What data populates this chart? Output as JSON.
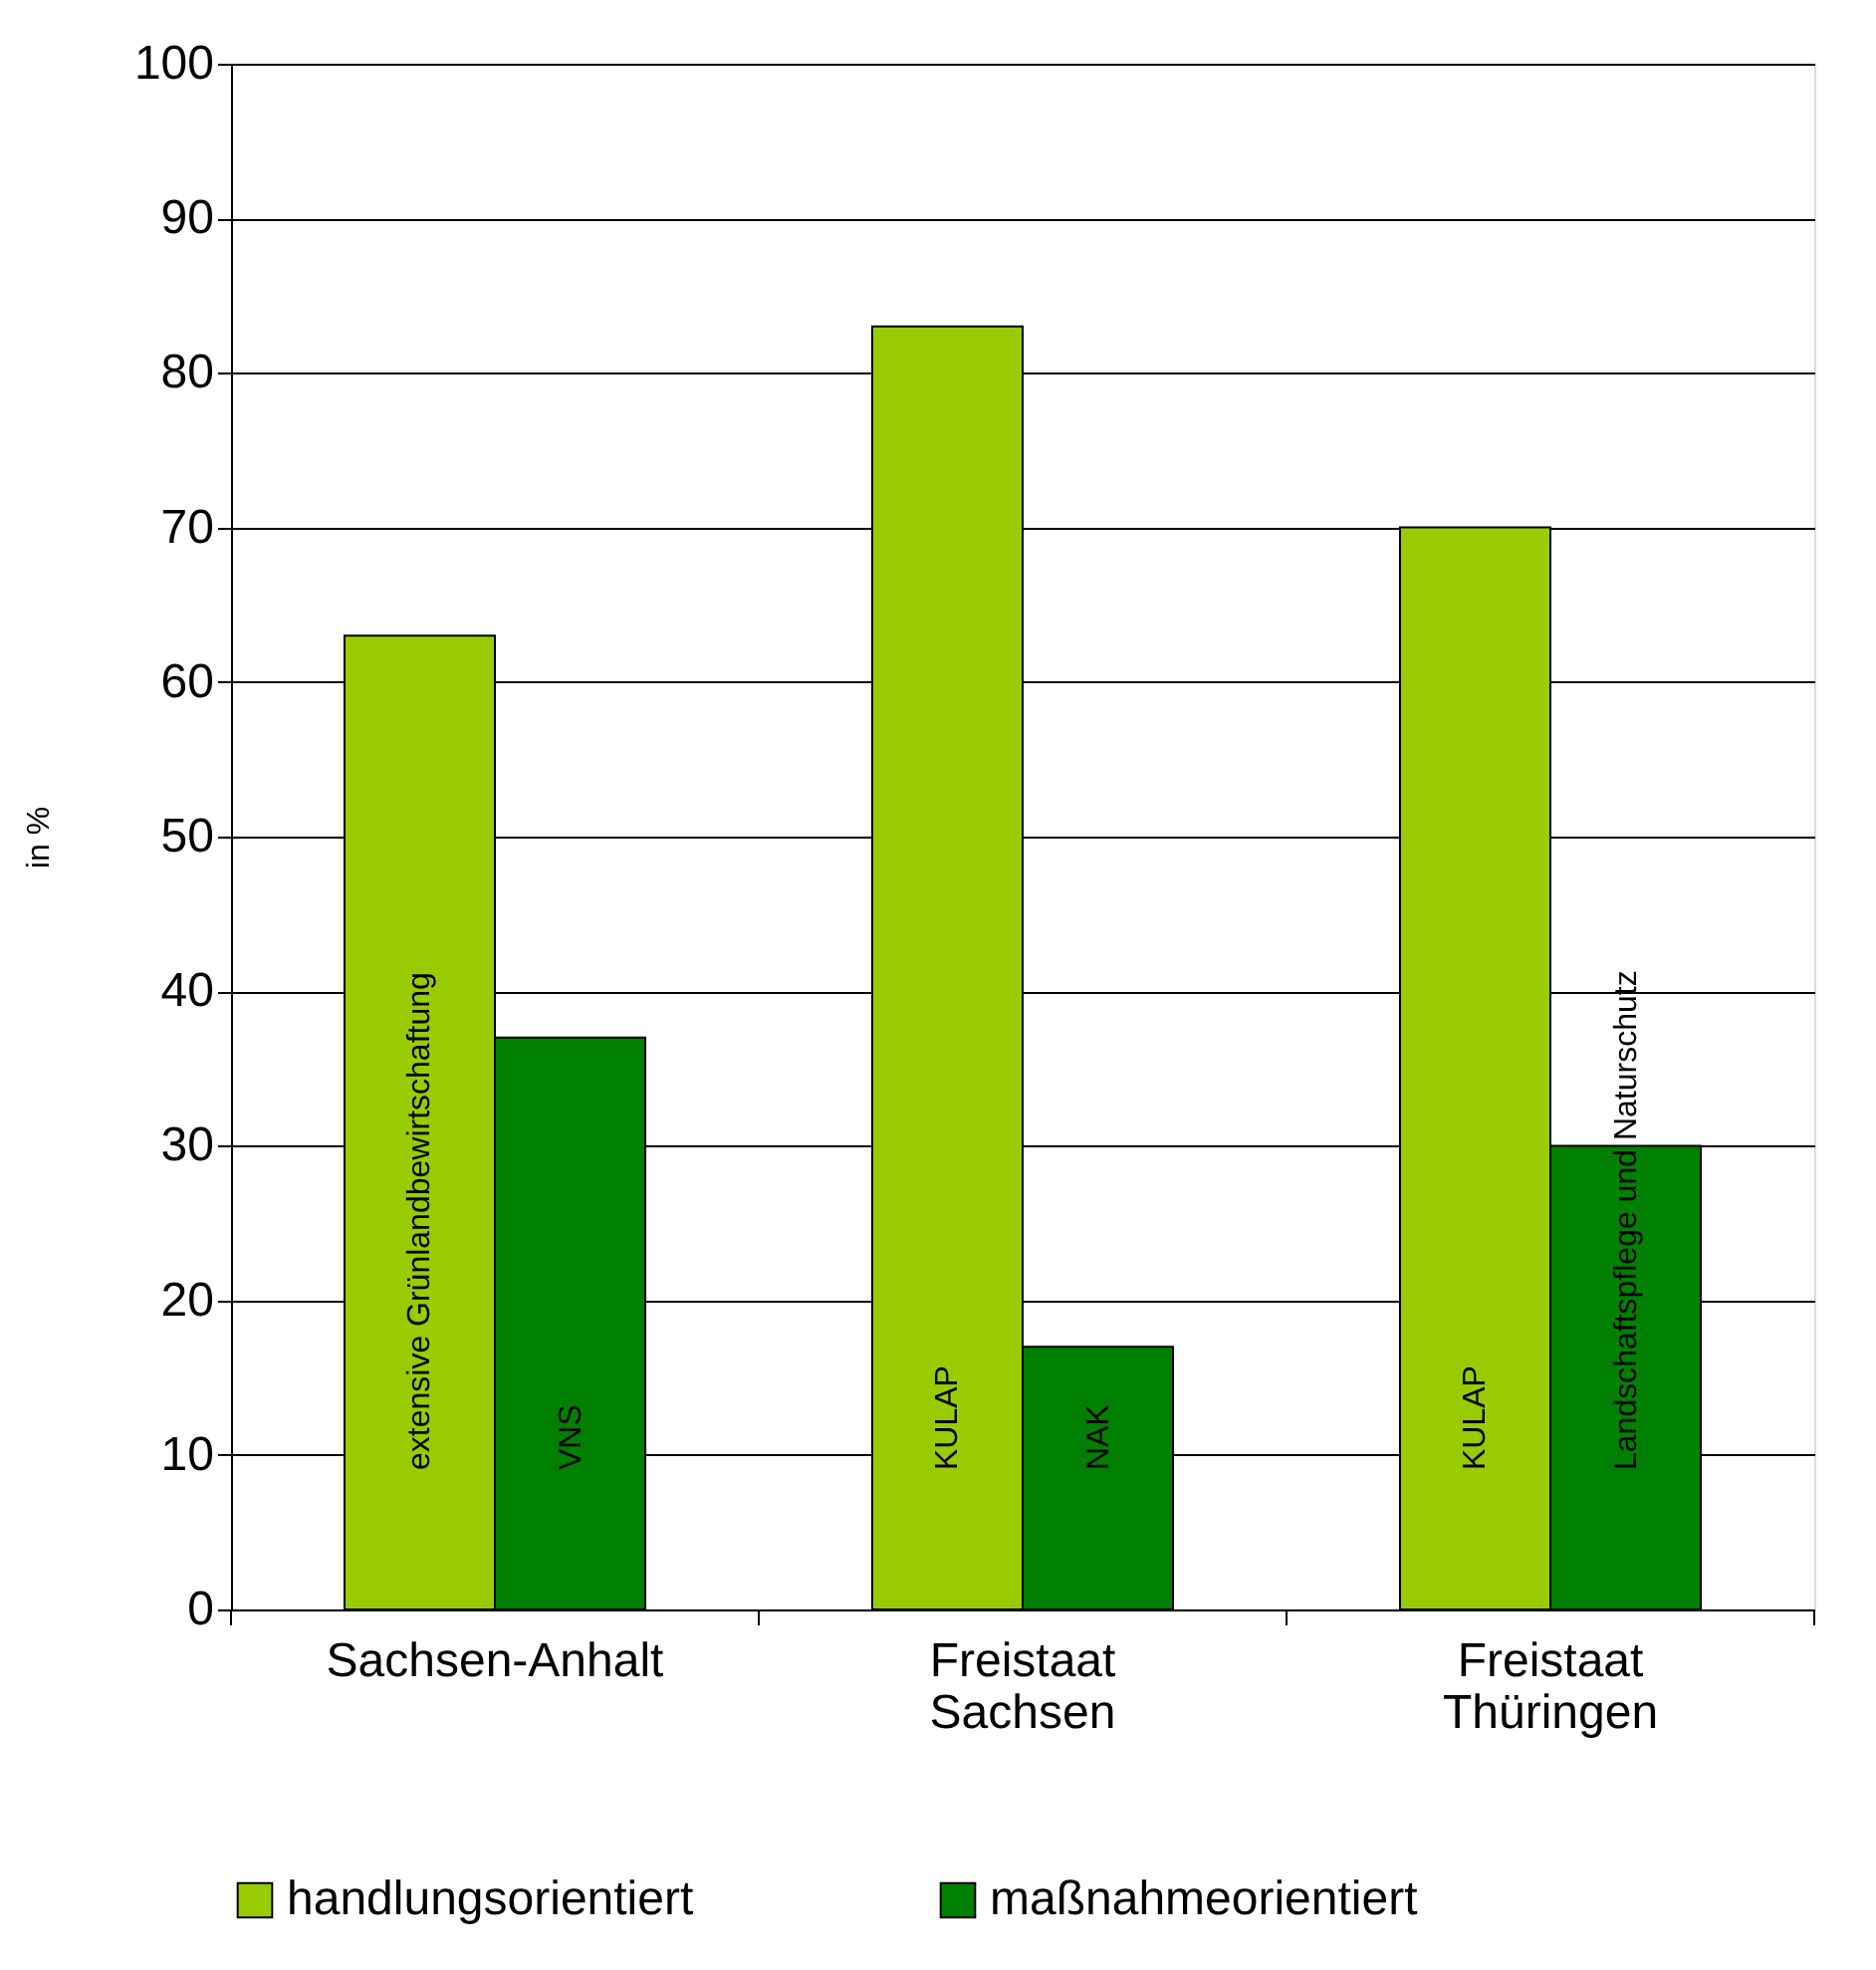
{
  "chart_data": {
    "type": "bar",
    "ylabel": "in %",
    "categories": [
      "Sachsen-Anhalt",
      "Freistaat Sachsen",
      "Freistaat Thüringen"
    ],
    "series": [
      {
        "name": "handlungsorientiert",
        "color": "#99cc00",
        "values": [
          63,
          83,
          70
        ]
      },
      {
        "name": "maßnahmeorientiert",
        "color": "#008000",
        "values": [
          37,
          17,
          30
        ]
      }
    ],
    "annotations": [
      "extensive Grünlandbewirtschaftung",
      "VNS",
      "KULAP",
      "NAK",
      "KULAP",
      "Landschaftspflege und Naturschutz"
    ],
    "ylim": [
      0,
      100
    ],
    "yticks": [
      0,
      10,
      20,
      30,
      40,
      50,
      60,
      70,
      80,
      90,
      100
    ],
    "grid": "y",
    "legend": "bottom"
  }
}
